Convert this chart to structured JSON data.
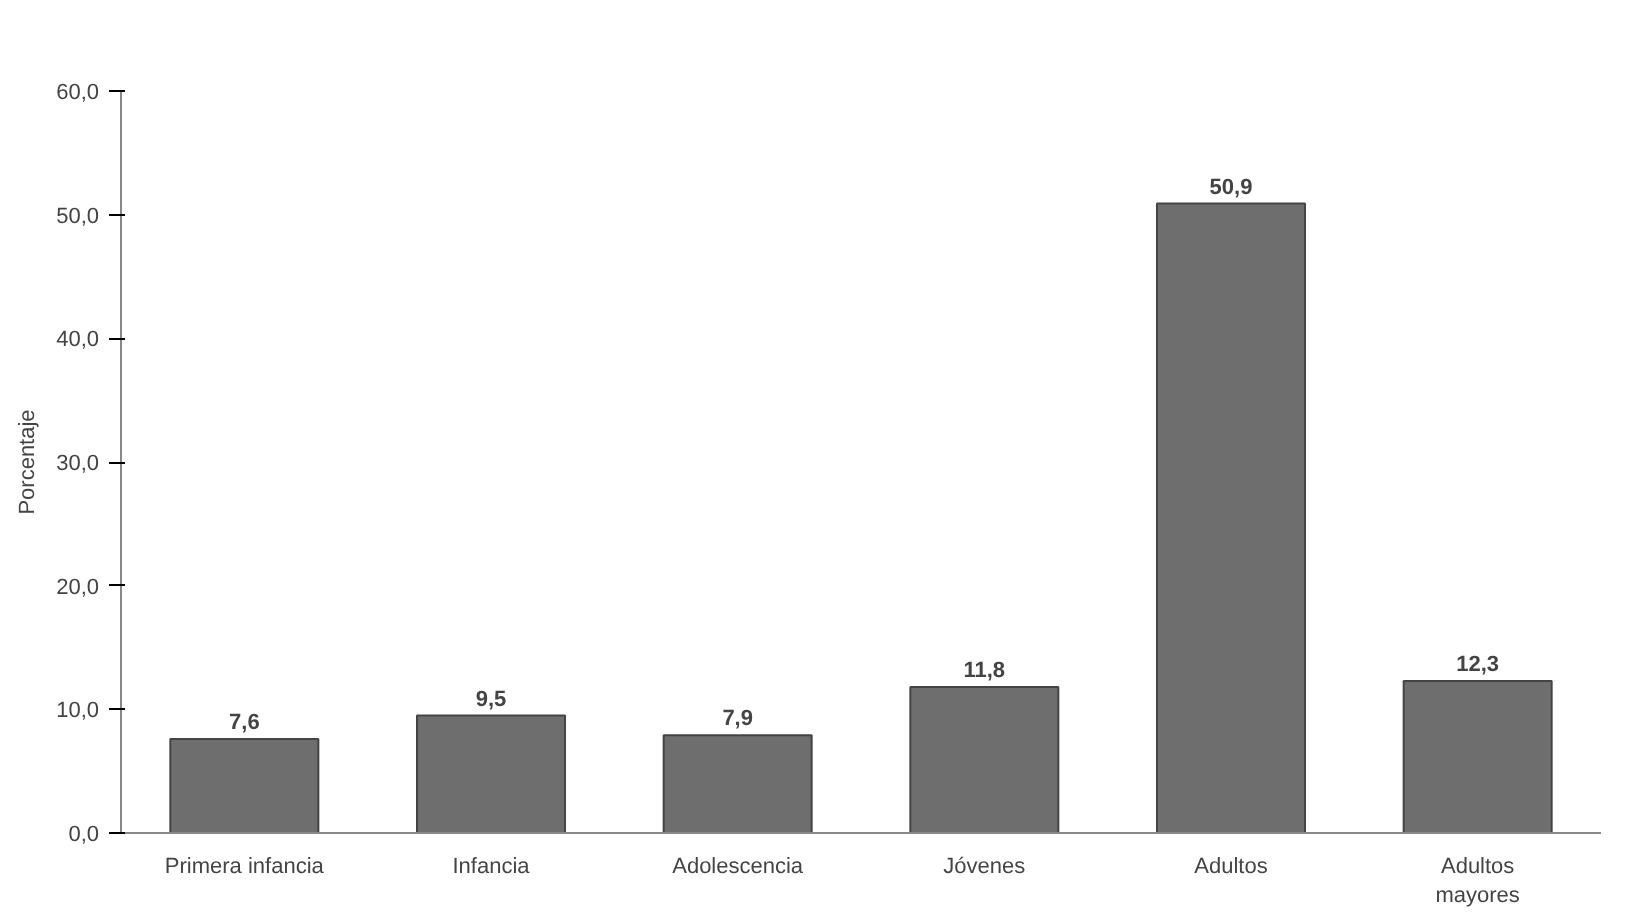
{
  "chart_data": {
    "type": "bar",
    "ylabel": "Porcentaje",
    "categories": [
      "Primera infancia",
      "Infancia",
      "Adolescencia",
      "Jóvenes",
      "Adultos",
      "Adultos\nmayores"
    ],
    "values": [
      7.6,
      9.5,
      7.9,
      11.8,
      50.9,
      12.3
    ],
    "value_labels": [
      "7,6",
      "9,5",
      "7,9",
      "11,8",
      "50,9",
      "12,3"
    ],
    "color": "#6e6e6e",
    "ylim": [
      0,
      60
    ],
    "yticks": [
      {
        "value": 0,
        "label": "0,0"
      },
      {
        "value": 10,
        "label": "10,0"
      },
      {
        "value": 20,
        "label": "20,0"
      },
      {
        "value": 30,
        "label": "30,0"
      },
      {
        "value": 40,
        "label": "40,0"
      },
      {
        "value": 50,
        "label": "50,0"
      },
      {
        "value": 60,
        "label": "60,0"
      }
    ],
    "grid": false
  }
}
